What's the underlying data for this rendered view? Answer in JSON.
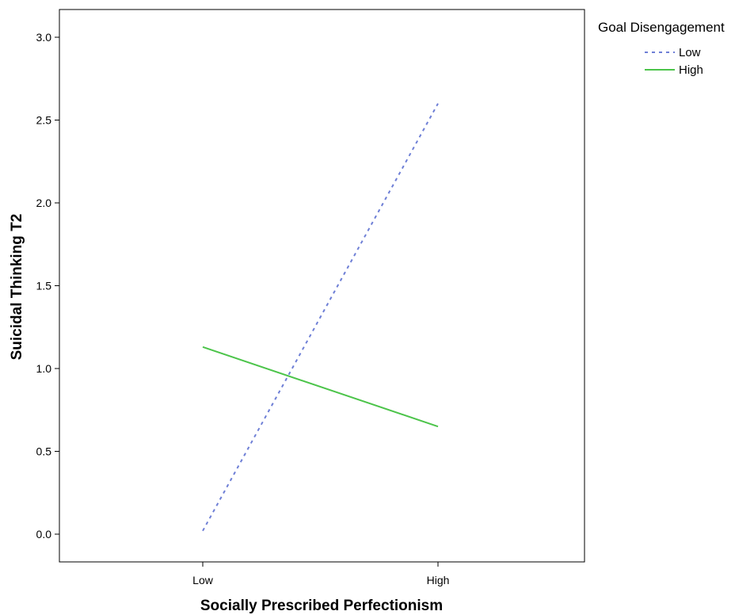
{
  "chart_data": {
    "type": "line",
    "xlabel": "Socially Prescribed Perfectionism",
    "ylabel": "Suicidal Thinking T2",
    "categories": [
      "Low",
      "High"
    ],
    "ylim": [
      -0.17,
      3.17
    ],
    "yticks": [
      "0.0",
      "0.5",
      "1.0",
      "1.5",
      "2.0",
      "2.5",
      "3.0"
    ],
    "grid": false,
    "legend": {
      "title": "Goal Disengagement",
      "placement": "right"
    },
    "series": [
      {
        "name": "Low",
        "values": [
          0.02,
          2.6
        ],
        "color": "#6e7fd6",
        "style": "dotted"
      },
      {
        "name": "High",
        "values": [
          1.13,
          0.65
        ],
        "color": "#4cc44a",
        "style": "solid"
      }
    ]
  }
}
